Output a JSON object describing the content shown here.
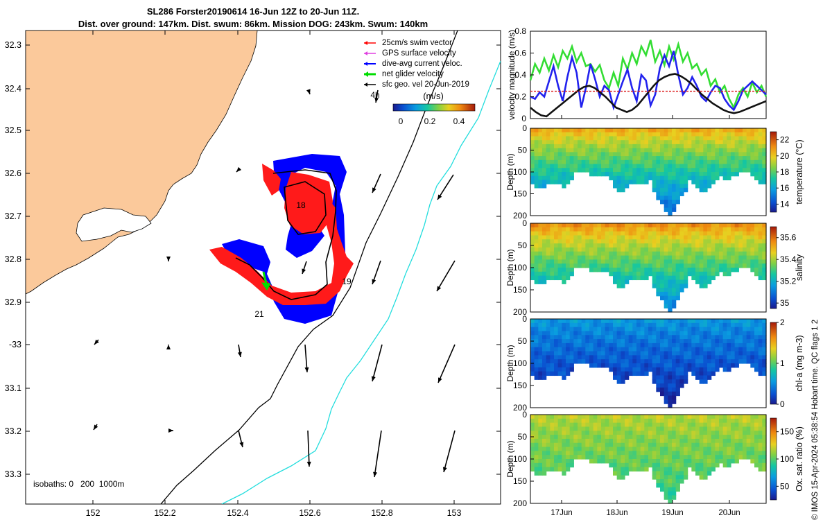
{
  "header": {
    "line1": "SL286 Forster20190614 16-Jun 12Z to 20-Jun 11Z.",
    "line2": "Dist. over ground: 147km. Dist. swum: 86km. Mission DOG: 243km. Swum: 140km"
  },
  "credit": "© IMOS 15-Apr-2024 05:38:54 Hobart time. QC flags 1 2",
  "colors": {
    "land": "#fbc99b",
    "swim_vector": "#ff0000",
    "gps_velocity": "#e040e0",
    "dive_avg": "#0000ff",
    "net_glider": "#00dd00",
    "sfc_geo": "#000000",
    "isobath_200": "#000000",
    "isobath_1000": "#22dddd"
  },
  "map": {
    "legend": [
      {
        "label": "25cm/s swim vector",
        "color": "#ff0000"
      },
      {
        "label": "GPS surface velocity",
        "color": "#e040e0"
      },
      {
        "label": "dive-avg current veloc.",
        "color": "#0000ff"
      },
      {
        "label": "net glider velocity",
        "color": "#00dd00"
      },
      {
        "label": "sfc geo. vel 20-Jun-2019",
        "color": "#000000"
      }
    ],
    "lat_ticks": [
      "32.3",
      "32.4",
      "32.5",
      "32.6",
      "32.7",
      "32.8",
      "32.9",
      "-33",
      "33.1",
      "33.2",
      "33.3"
    ],
    "lon_ticks": [
      "152",
      "152.2",
      "152.4",
      "152.6",
      "152.8",
      "153"
    ],
    "colorbar_title": "(m/s)",
    "colorbar_ticks": [
      "0",
      "0.2",
      "0.4"
    ],
    "scale_label": "4h",
    "day_labels": [
      "18",
      "19",
      "21"
    ],
    "isobaths_label": "isobaths: 0   200  1000m"
  },
  "chart_data": [
    {
      "type": "line",
      "title": "",
      "xlabel": "",
      "ylabel": "velocity magnitude (m/s)",
      "ylim": [
        0,
        0.8
      ],
      "yticks": [
        "0",
        "0.2",
        "0.4",
        "0.6",
        "0.8"
      ],
      "x_start_day": 16.5,
      "x_end_day": 20.46,
      "series": [
        {
          "name": "net glider velocity",
          "color": "#33dd33",
          "values": [
            0.35,
            0.5,
            0.42,
            0.55,
            0.44,
            0.58,
            0.47,
            0.62,
            0.55,
            0.66,
            0.52,
            0.6,
            0.48,
            0.5,
            0.43,
            0.49,
            0.35,
            0.28,
            0.42,
            0.3,
            0.55,
            0.45,
            0.6,
            0.5,
            0.66,
            0.58,
            0.72,
            0.52,
            0.62,
            0.49,
            0.66,
            0.54,
            0.68,
            0.52,
            0.6,
            0.46,
            0.5,
            0.4,
            0.45,
            0.3,
            0.36,
            0.24,
            0.3,
            0.18,
            0.1,
            0.22,
            0.28,
            0.2,
            0.33,
            0.24,
            0.3,
            0.2
          ]
        },
        {
          "name": "dive-avg current velocity",
          "color": "#2222ee",
          "values": [
            0.2,
            0.18,
            0.24,
            0.2,
            0.34,
            0.48,
            0.3,
            0.16,
            0.38,
            0.56,
            0.42,
            0.1,
            0.28,
            0.5,
            0.36,
            0.2,
            0.3,
            0.26,
            0.1,
            0.22,
            0.34,
            0.45,
            0.28,
            0.16,
            0.4,
            0.35,
            0.12,
            0.22,
            0.46,
            0.58,
            0.48,
            0.62,
            0.4,
            0.22,
            0.28,
            0.38,
            0.3,
            0.2,
            0.16,
            0.24,
            0.3,
            0.28,
            0.18,
            0.12,
            0.08,
            0.16,
            0.26,
            0.3,
            0.34,
            0.3,
            0.26,
            0.22
          ]
        },
        {
          "name": "sfc geo velocity",
          "color": "#111111",
          "values": [
            0.1,
            0.06,
            0.03,
            0.02,
            0.06,
            0.1,
            0.14,
            0.18,
            0.22,
            0.26,
            0.29,
            0.3,
            0.28,
            0.24,
            0.2,
            0.15,
            0.1,
            0.08,
            0.06,
            0.08,
            0.12,
            0.18,
            0.24,
            0.3,
            0.35,
            0.38,
            0.4,
            0.41,
            0.39,
            0.36,
            0.32,
            0.27,
            0.22,
            0.18,
            0.14,
            0.11,
            0.08,
            0.06,
            0.05,
            0.06,
            0.08,
            0.1,
            0.12,
            0.14,
            0.16
          ]
        },
        {
          "name": "swim speed",
          "color": "#dd2222",
          "dashed": true,
          "values": [
            0.25,
            0.25
          ]
        }
      ]
    },
    {
      "type": "heatmap",
      "ylabel": "Depth (m)",
      "colorbar_label": "temperature (°C)",
      "yticks": [
        "0",
        "50",
        "100",
        "150",
        "200"
      ],
      "cbar_ticks": [
        "14",
        "16",
        "18",
        "20",
        "22"
      ],
      "cbar_min": 13,
      "cbar_max": 23,
      "surface_value": 20.5,
      "bottom_value": 14.5
    },
    {
      "type": "heatmap",
      "ylabel": "Depth (m)",
      "colorbar_label": "salinity",
      "yticks": [
        "0",
        "50",
        "100",
        "150",
        "200"
      ],
      "cbar_ticks": [
        "35",
        "35.2",
        "35.4",
        "35.6"
      ],
      "cbar_min": 34.95,
      "cbar_max": 35.7,
      "surface_value": 35.55,
      "bottom_value": 35.1
    },
    {
      "type": "heatmap",
      "ylabel": "Depth (m)",
      "colorbar_label": "chl-a (mg m-3)",
      "yticks": [
        "0",
        "50",
        "100",
        "150",
        "200"
      ],
      "cbar_ticks": [
        "0",
        "1",
        "2"
      ],
      "cbar_min": 0,
      "cbar_max": 2,
      "surface_value": 0.55,
      "bottom_value": 0.05
    },
    {
      "type": "heatmap",
      "ylabel": "Depth (m)",
      "colorbar_label": "Ox. sat. ratio (%)",
      "yticks": [
        "0",
        "50",
        "100",
        "150",
        "200"
      ],
      "cbar_ticks": [
        "50",
        "100",
        "150"
      ],
      "cbar_min": 25,
      "cbar_max": 175,
      "surface_value": 118,
      "bottom_value": 92
    }
  ],
  "time_axis": {
    "ticks": [
      "17Jun",
      "18Jun",
      "19Jun",
      "20Jun"
    ]
  }
}
